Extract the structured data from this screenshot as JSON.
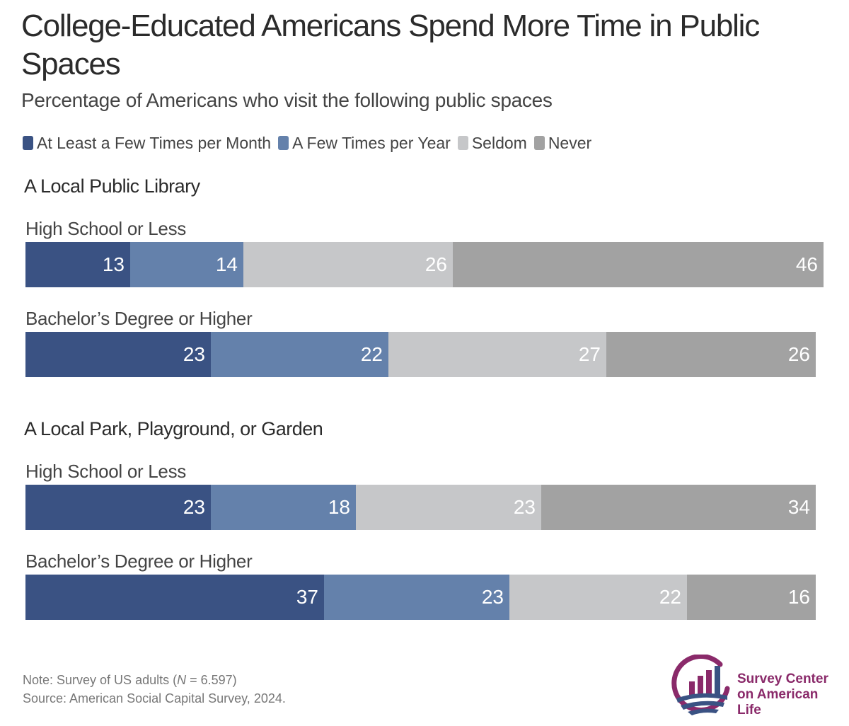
{
  "title": "College-Educated Americans Spend More Time in Public Spaces",
  "subtitle": "Percentage of Americans who visit the following public spaces",
  "legend": [
    {
      "label": "At Least a Few Times per Month",
      "color": "#3a5283"
    },
    {
      "label": "A Few Times per Year",
      "color": "#6481ab"
    },
    {
      "label": "Seldom",
      "color": "#c6c7c9"
    },
    {
      "label": "Never",
      "color": "#a2a2a2"
    }
  ],
  "chart_data": {
    "type": "bar",
    "orientation": "horizontal",
    "stacked": true,
    "unit": "percent",
    "series_names": [
      "At Least a Few Times per Month",
      "A Few Times per Year",
      "Seldom",
      "Never"
    ],
    "colors": [
      "#3a5283",
      "#6481ab",
      "#c6c7c9",
      "#a2a2a2"
    ],
    "panels": [
      {
        "title": "A Local Public Library",
        "groups": [
          {
            "label": "High School or Less",
            "values": [
              13,
              14,
              26,
              46
            ]
          },
          {
            "label": "Bachelor’s Degree or Higher",
            "values": [
              23,
              22,
              27,
              26
            ]
          }
        ]
      },
      {
        "title": "A Local Park, Playground, or Garden",
        "groups": [
          {
            "label": "High School or Less",
            "values": [
              23,
              18,
              23,
              34
            ]
          },
          {
            "label": "Bachelor’s Degree or Higher",
            "values": [
              37,
              23,
              22,
              16
            ]
          }
        ]
      }
    ]
  },
  "footer": {
    "note_prefix": "Note: Survey of US adults (",
    "note_n": "N",
    "note_suffix": " = 6.597)",
    "source": "Source: American Social Capital Survey, 2024."
  },
  "logo": {
    "line1": "Survey Center",
    "line2": "on American Life",
    "icon": "bar-chart-landscape-icon",
    "colors": {
      "ring": "#8a2a6a",
      "bars": "#3a5283",
      "waves": "#3a5283"
    }
  }
}
